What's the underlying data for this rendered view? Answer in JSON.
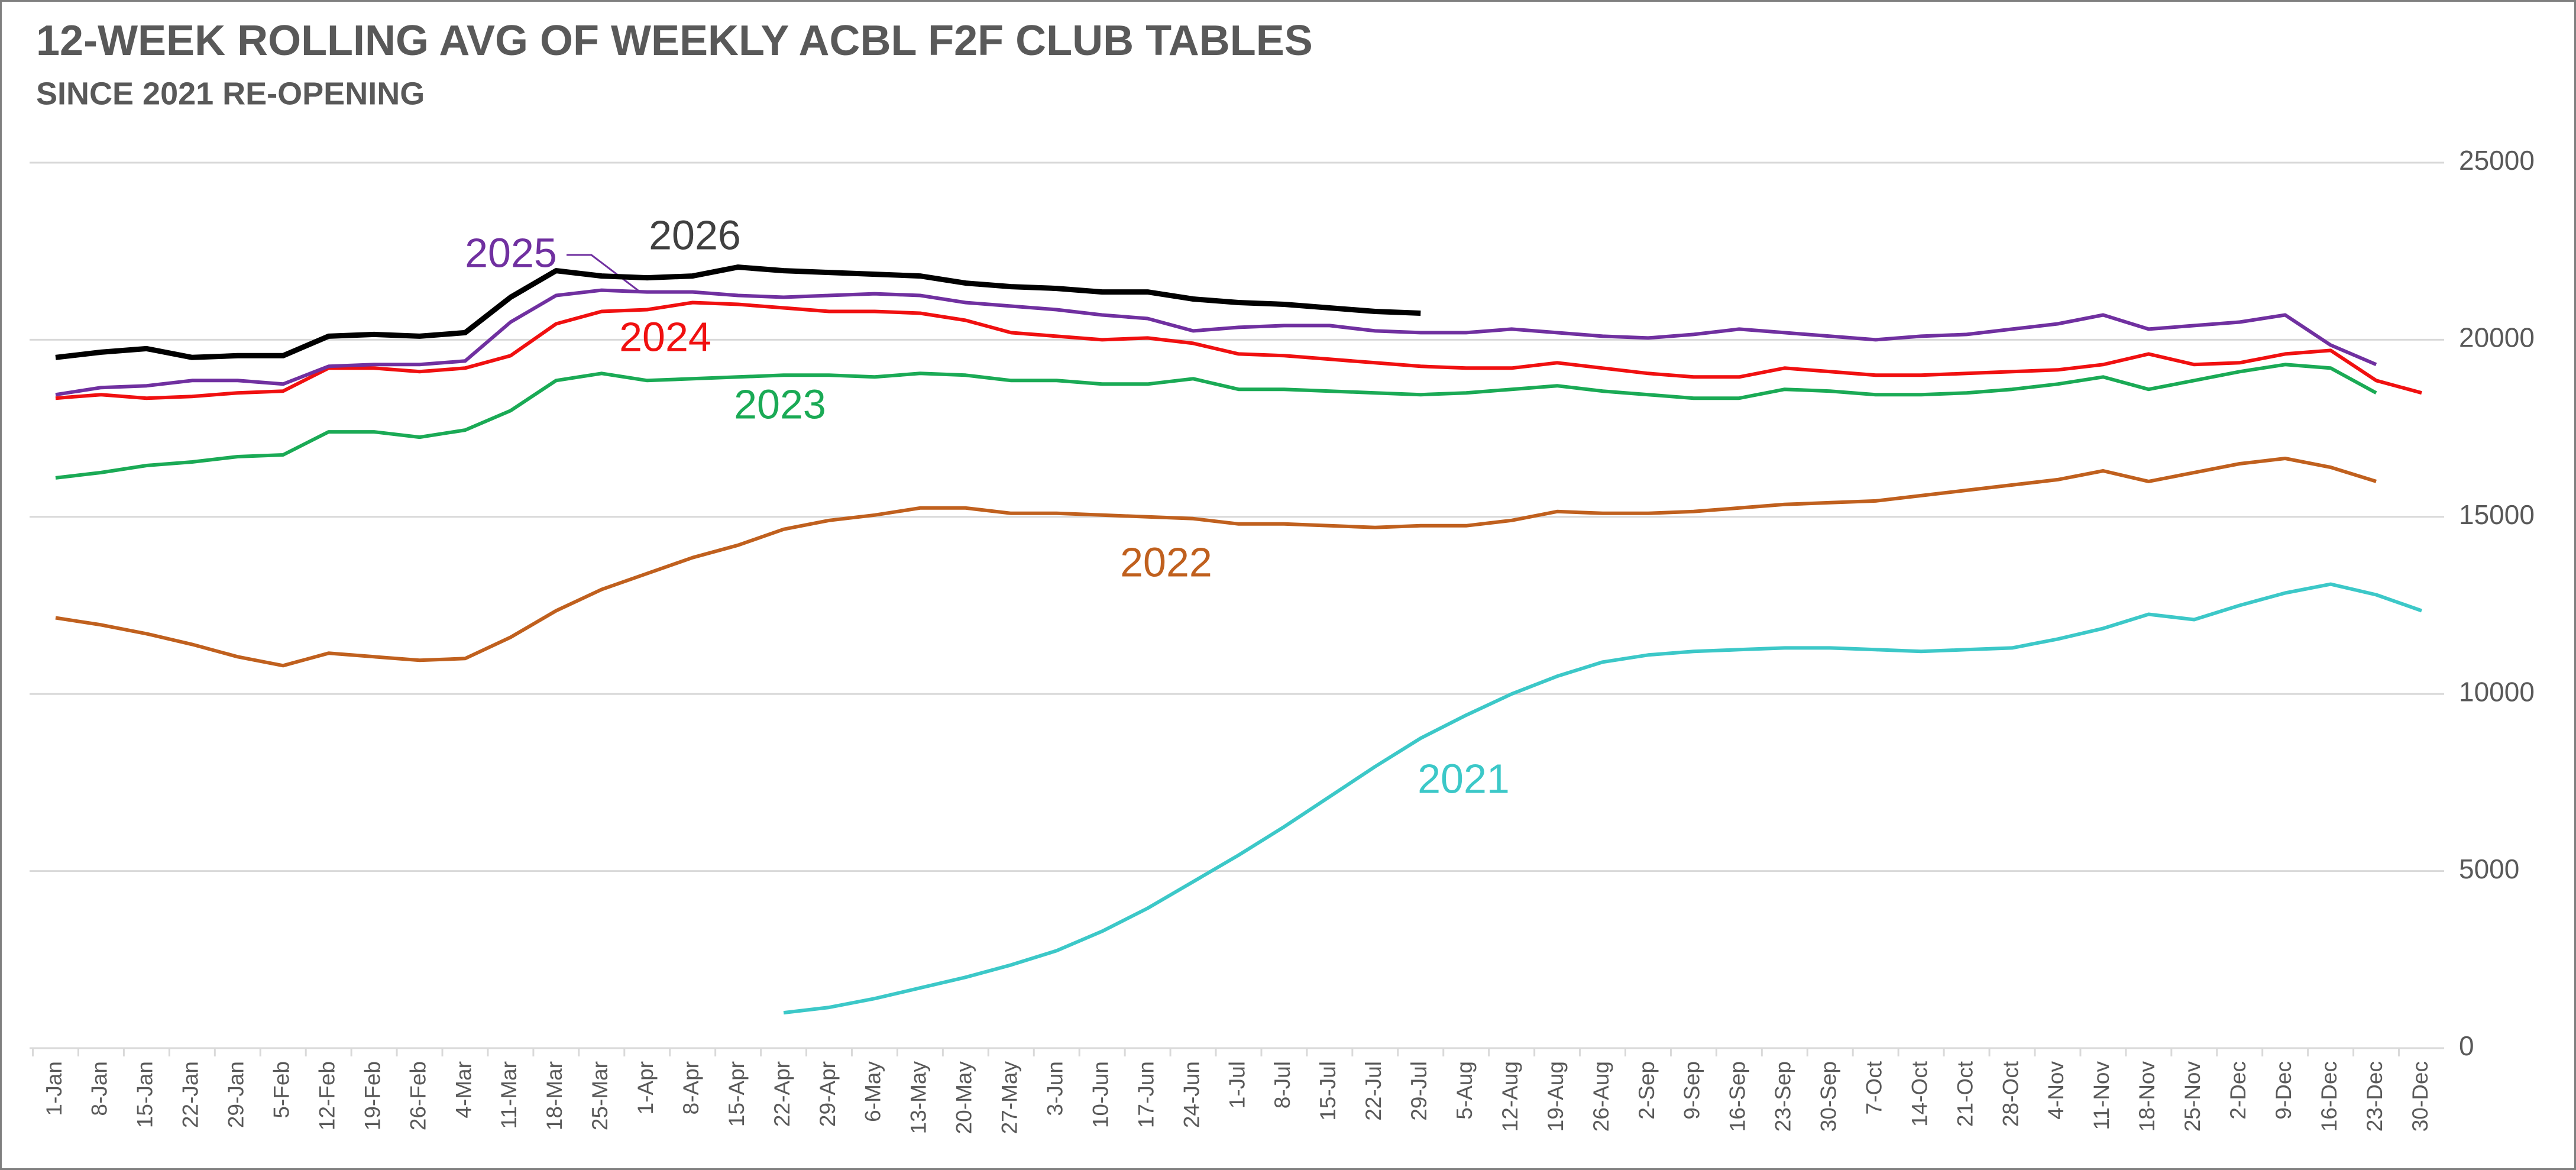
{
  "chart_data": {
    "type": "line",
    "title": "12-WEEK ROLLING AVG OF WEEKLY ACBL F2F CLUB TABLES",
    "subtitle": "SINCE 2021 RE-OPENING",
    "categories": [
      "1-Jan",
      "8-Jan",
      "15-Jan",
      "22-Jan",
      "29-Jan",
      "5-Feb",
      "12-Feb",
      "19-Feb",
      "26-Feb",
      "4-Mar",
      "11-Mar",
      "18-Mar",
      "25-Mar",
      "1-Apr",
      "8-Apr",
      "15-Apr",
      "22-Apr",
      "29-Apr",
      "6-May",
      "13-May",
      "20-May",
      "27-May",
      "3-Jun",
      "10-Jun",
      "17-Jun",
      "24-Jun",
      "1-Jul",
      "8-Jul",
      "15-Jul",
      "22-Jul",
      "29-Jul",
      "5-Aug",
      "12-Aug",
      "19-Aug",
      "26-Aug",
      "2-Sep",
      "9-Sep",
      "16-Sep",
      "23-Sep",
      "30-Sep",
      "7-Oct",
      "14-Oct",
      "21-Oct",
      "28-Oct",
      "4-Nov",
      "11-Nov",
      "18-Nov",
      "25-Nov",
      "2-Dec",
      "9-Dec",
      "16-Dec",
      "23-Dec",
      "30-Dec"
    ],
    "ylim": [
      0,
      25000
    ],
    "yticks": [
      0,
      5000,
      10000,
      15000,
      20000,
      25000
    ],
    "grid": true,
    "series": [
      {
        "name": "2021",
        "color": "#3cc8c8",
        "values": [
          null,
          null,
          null,
          null,
          null,
          null,
          null,
          null,
          null,
          null,
          null,
          null,
          null,
          null,
          null,
          null,
          1000,
          1150,
          1400,
          1700,
          2000,
          2350,
          2750,
          3300,
          3950,
          4700,
          5450,
          6250,
          7100,
          7950,
          8750,
          9400,
          10000,
          10500,
          10900,
          11100,
          11200,
          11250,
          11300,
          11300,
          11250,
          11200,
          11250,
          11300,
          11550,
          11850,
          12250,
          12100,
          12500,
          12850,
          13100,
          12800,
          12350
        ]
      },
      {
        "name": "2022",
        "color": "#c0601e",
        "values": [
          12150,
          11950,
          11700,
          11400,
          11050,
          10800,
          11150,
          11050,
          10950,
          11000,
          11600,
          12350,
          12950,
          13400,
          13850,
          14200,
          14650,
          14900,
          15050,
          15250,
          15250,
          15100,
          15100,
          15050,
          15000,
          14950,
          14800,
          14800,
          14750,
          14700,
          14750,
          14750,
          14900,
          15150,
          15100,
          15100,
          15150,
          15250,
          15350,
          15400,
          15450,
          15600,
          15750,
          15900,
          16050,
          16300,
          16000,
          16250,
          16500,
          16650,
          16400,
          16000,
          null
        ]
      },
      {
        "name": "2023",
        "color": "#1aaa55",
        "values": [
          16100,
          16250,
          16450,
          16550,
          16700,
          16750,
          17400,
          17400,
          17250,
          17450,
          18000,
          18850,
          19050,
          18850,
          18900,
          18950,
          19000,
          19000,
          18950,
          19050,
          19000,
          18850,
          18850,
          18750,
          18750,
          18900,
          18600,
          18600,
          18550,
          18500,
          18450,
          18500,
          18600,
          18700,
          18550,
          18450,
          18350,
          18350,
          18600,
          18550,
          18450,
          18450,
          18500,
          18600,
          18750,
          18950,
          18600,
          18850,
          19100,
          19300,
          19200,
          18500,
          null
        ]
      },
      {
        "name": "2024",
        "color": "#f01010",
        "values": [
          18350,
          18450,
          18350,
          18400,
          18500,
          18550,
          19200,
          19200,
          19100,
          19200,
          19550,
          20450,
          20800,
          20850,
          21050,
          21000,
          20900,
          20800,
          20800,
          20750,
          20550,
          20200,
          20100,
          20000,
          20050,
          19900,
          19600,
          19550,
          19450,
          19350,
          19250,
          19200,
          19200,
          19350,
          19200,
          19050,
          18950,
          18950,
          19200,
          19100,
          19000,
          19000,
          19050,
          19100,
          19150,
          19300,
          19600,
          19300,
          19350,
          19600,
          19700,
          18850,
          18500
        ]
      },
      {
        "name": "2025",
        "color": "#7030a0",
        "values": [
          18450,
          18650,
          18700,
          18850,
          18850,
          18750,
          19250,
          19300,
          19300,
          19400,
          20500,
          21250,
          21400,
          21350,
          21350,
          21250,
          21200,
          21250,
          21300,
          21250,
          21050,
          20950,
          20850,
          20700,
          20600,
          20250,
          20350,
          20400,
          20400,
          20250,
          20200,
          20200,
          20300,
          20200,
          20100,
          20050,
          20150,
          20300,
          20200,
          20100,
          20000,
          20100,
          20150,
          20300,
          20450,
          20700,
          20300,
          20400,
          20500,
          20700,
          19850,
          19300,
          null
        ]
      },
      {
        "name": "2026",
        "color": "#000000",
        "values": [
          19500,
          19650,
          19750,
          19500,
          19550,
          19550,
          20100,
          20150,
          20100,
          20200,
          21200,
          21950,
          21800,
          21750,
          21800,
          22050,
          21950,
          21900,
          21850,
          21800,
          21600,
          21500,
          21450,
          21350,
          21350,
          21150,
          21050,
          21000,
          20900,
          20800,
          20750,
          null,
          null,
          null,
          null,
          null,
          null,
          null,
          null,
          null,
          null,
          null,
          null,
          null,
          null,
          null,
          null,
          null,
          null,
          null,
          null,
          null,
          null
        ]
      }
    ]
  }
}
